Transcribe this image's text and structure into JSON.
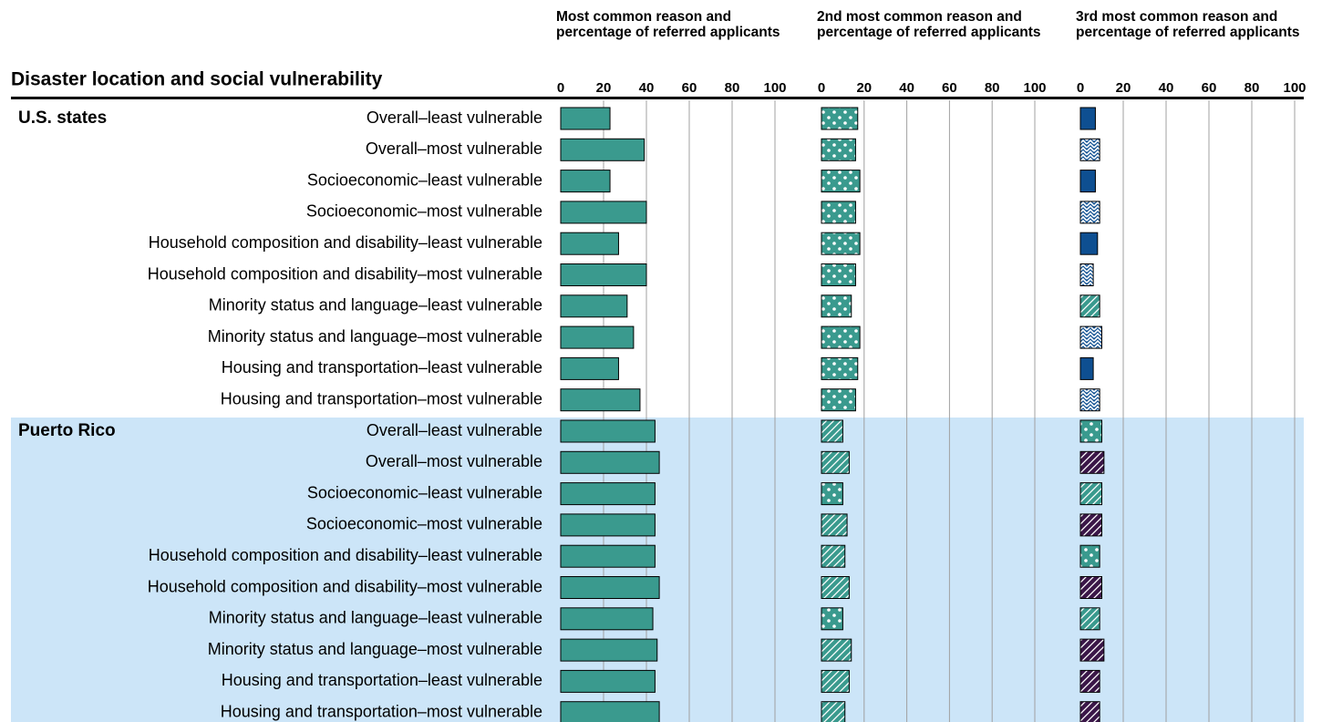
{
  "rows": {
    "heading": "Disaster location and social vulnerability",
    "groups": [
      {
        "name": "U.S. states",
        "categories": [
          "Overall–least vulnerable",
          "Overall–most vulnerable",
          "Socioeconomic–least vulnerable",
          "Socioeconomic–most vulnerable",
          "Household composition and disability–least vulnerable",
          "Household composition and disability–most vulnerable",
          "Minority status and language–least vulnerable",
          "Minority status and language–most vulnerable",
          "Housing and transportation–least vulnerable",
          "Housing and transportation–most vulnerable"
        ]
      },
      {
        "name": "Puerto Rico",
        "categories": [
          "Overall–least vulnerable",
          "Overall–most vulnerable",
          "Socioeconomic–least vulnerable",
          "Socioeconomic–most vulnerable",
          "Household composition and disability–least vulnerable",
          "Household composition and disability–most vulnerable",
          "Minority status and language–least vulnerable",
          "Minority status and language–most vulnerable",
          "Housing and transportation–least vulnerable",
          "Housing and transportation–most vulnerable"
        ]
      }
    ]
  },
  "chart_data": [
    {
      "type": "bar",
      "orientation": "horizontal",
      "title": "Most common reason and percentage of referred applicants",
      "values": [
        23,
        39,
        23,
        40,
        27,
        40,
        31,
        34,
        27,
        37,
        44,
        46,
        44,
        44,
        44,
        46,
        43,
        45,
        44,
        46
      ],
      "patterns": [
        "solid",
        "solid",
        "solid",
        "solid",
        "solid",
        "solid",
        "solid",
        "solid",
        "solid",
        "solid",
        "solid",
        "solid",
        "solid",
        "solid",
        "solid",
        "solid",
        "solid",
        "solid",
        "solid",
        "solid"
      ],
      "colors": [
        "#3a9a8e",
        "#3a9a8e",
        "#3a9a8e",
        "#3a9a8e",
        "#3a9a8e",
        "#3a9a8e",
        "#3a9a8e",
        "#3a9a8e",
        "#3a9a8e",
        "#3a9a8e",
        "#3a9a8e",
        "#3a9a8e",
        "#3a9a8e",
        "#3a9a8e",
        "#3a9a8e",
        "#3a9a8e",
        "#3a9a8e",
        "#3a9a8e",
        "#3a9a8e",
        "#3a9a8e"
      ],
      "xlim": [
        0,
        100
      ],
      "xticks": [
        0,
        20,
        40,
        60,
        80,
        100
      ],
      "grid": true
    },
    {
      "type": "bar",
      "orientation": "horizontal",
      "title": "2nd most common reason and percentage of referred applicants",
      "values": [
        17,
        16,
        18,
        16,
        18,
        16,
        14,
        18,
        17,
        16,
        10,
        13,
        10,
        12,
        11,
        13,
        10,
        14,
        13,
        11
      ],
      "patterns": [
        "dots",
        "dots",
        "dots",
        "dots",
        "dots",
        "dots",
        "dots",
        "dots",
        "dots",
        "dots",
        "diagonal",
        "diagonal",
        "dots",
        "diagonal",
        "diagonal",
        "diagonal",
        "dots",
        "diagonal",
        "diagonal",
        "diagonal"
      ],
      "colors": [
        "#3a9a8e",
        "#3a9a8e",
        "#3a9a8e",
        "#3a9a8e",
        "#3a9a8e",
        "#3a9a8e",
        "#3a9a8e",
        "#3a9a8e",
        "#3a9a8e",
        "#3a9a8e",
        "#3a9a8e",
        "#3a9a8e",
        "#3a9a8e",
        "#3a9a8e",
        "#3a9a8e",
        "#3a9a8e",
        "#3a9a8e",
        "#3a9a8e",
        "#3a9a8e",
        "#3a9a8e"
      ],
      "xlim": [
        0,
        100
      ],
      "xticks": [
        0,
        20,
        40,
        60,
        80,
        100
      ],
      "grid": true
    },
    {
      "type": "bar",
      "orientation": "horizontal",
      "title": "3rd most common reason and percentage of referred applicants",
      "values": [
        7,
        9,
        7,
        9,
        8,
        6,
        9,
        10,
        6,
        9,
        10,
        11,
        10,
        10,
        9,
        10,
        9,
        11,
        9,
        9
      ],
      "patterns": [
        "solid",
        "waves",
        "solid",
        "waves",
        "solid",
        "waves",
        "diagonal",
        "waves",
        "solid",
        "waves",
        "dots",
        "diagonal",
        "diagonal",
        "diagonal",
        "dots",
        "diagonal",
        "diagonal",
        "diagonal",
        "diagonal",
        "diagonal"
      ],
      "colors": [
        "#0e4f91",
        "#0e4f91",
        "#0e4f91",
        "#0e4f91",
        "#0e4f91",
        "#0e4f91",
        "#3a9a8e",
        "#0e4f91",
        "#0e4f91",
        "#0e4f91",
        "#3a9a8e",
        "#3b1748",
        "#3a9a8e",
        "#3b1748",
        "#3a9a8e",
        "#3b1748",
        "#3a9a8e",
        "#3b1748",
        "#3b1748",
        "#3b1748"
      ],
      "xlim": [
        0,
        100
      ],
      "xticks": [
        0,
        20,
        40,
        60,
        80,
        100
      ],
      "grid": true
    }
  ]
}
